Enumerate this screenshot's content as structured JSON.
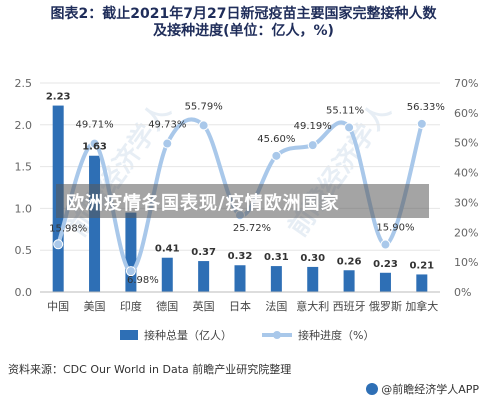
{
  "title_line1": "图表2：截止2021年7月27日新冠疫苗主要国家完整接种人数",
  "title_line2": "及接种进度(单位：亿人，%)",
  "banner_text": "欧洲疫情各国表现/疫情欧洲国家",
  "source_text": "资料来源：CDC Our World in Data 前瞻产业研究院整理",
  "brand_text": "@前瞻经济学人APP",
  "watermark_text": "前瞻经济学人",
  "colors": {
    "bar": "#2e6fb5",
    "line": "#a9c8ea",
    "grid": "#e6e6e6",
    "axis_text": "#666666"
  },
  "chart_data": {
    "type": "bar",
    "categories": [
      "中国",
      "美国",
      "印度",
      "德国",
      "英国",
      "日本",
      "法国",
      "意大利",
      "西班牙",
      "俄罗斯",
      "加拿大"
    ],
    "series": [
      {
        "name": "接种总量（亿人）",
        "type": "bar",
        "axis": "left",
        "values": [
          2.23,
          1.63,
          0.95,
          0.41,
          0.37,
          0.32,
          0.31,
          0.3,
          0.26,
          0.23,
          0.21
        ],
        "labels": [
          "2.23",
          "1.63",
          "",
          "0.41",
          "0.37",
          "0.32",
          "0.31",
          "0.30",
          "0.26",
          "0.23",
          "0.21"
        ]
      },
      {
        "name": "接种进度（%）",
        "type": "line",
        "axis": "right",
        "values": [
          15.98,
          49.71,
          6.98,
          49.73,
          55.79,
          25.72,
          45.6,
          49.19,
          55.11,
          15.9,
          56.33
        ],
        "labels": [
          "15.98%",
          "49.71%",
          "6.98%",
          "49.73%",
          "55.79%",
          "25.72%",
          "45.60%",
          "49.19%",
          "55.11%",
          "15.90%",
          "56.33%"
        ]
      }
    ],
    "y_left": {
      "min": 0,
      "max": 2.5,
      "ticks": [
        "0.0",
        "0.5",
        "1.0",
        "1.5",
        "2.0",
        "2.5"
      ]
    },
    "y_right": {
      "min": 0,
      "max": 70,
      "ticks": [
        "0%",
        "10%",
        "20%",
        "30%",
        "40%",
        "50%",
        "60%",
        "70%"
      ]
    },
    "grid": true,
    "legend_position": "bottom"
  }
}
